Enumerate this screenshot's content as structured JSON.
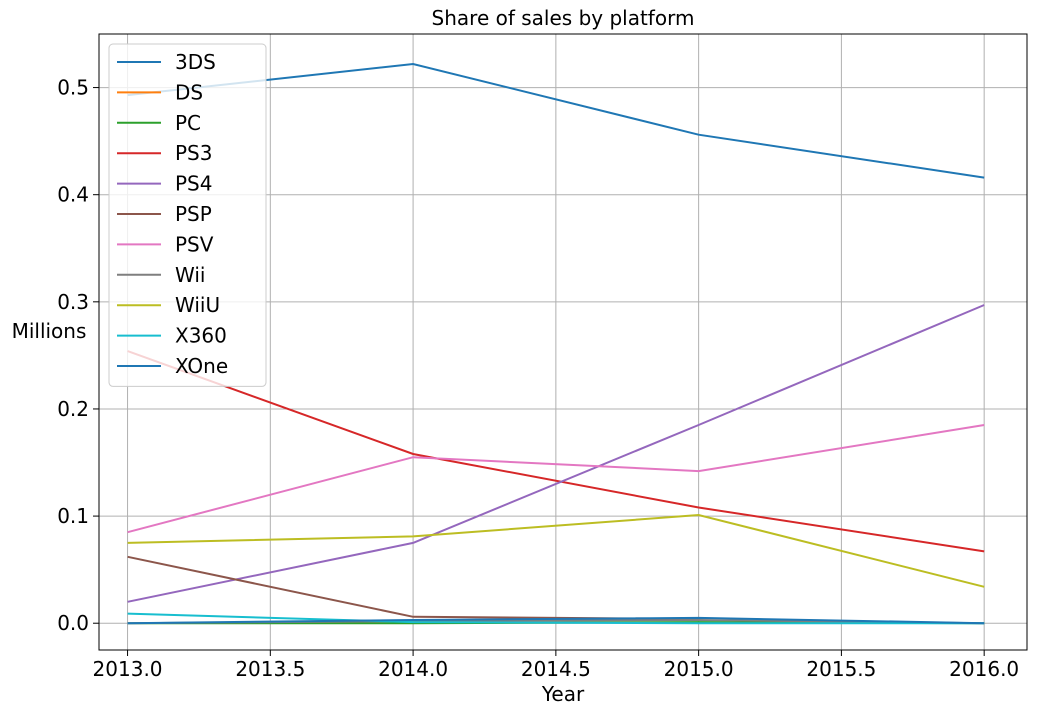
{
  "chart_data": {
    "type": "line",
    "title": "Share of sales by platform",
    "xlabel": "Year",
    "ylabel": "Millions",
    "x": [
      2013,
      2014,
      2015,
      2016
    ],
    "xlim": [
      2012.9,
      2016.15
    ],
    "ylim": [
      -0.025,
      0.55
    ],
    "xticks": [
      "2013.0",
      "2013.5",
      "2014.0",
      "2014.5",
      "2015.0",
      "2015.5",
      "2016.0"
    ],
    "yticks": [
      "0.0",
      "0.1",
      "0.2",
      "0.3",
      "0.4",
      "0.5"
    ],
    "grid": true,
    "legend_position": "top-left",
    "series": [
      {
        "name": "3DS",
        "color": "#1f77b4",
        "values": [
          0.493,
          0.522,
          0.456,
          0.416
        ]
      },
      {
        "name": "DS",
        "color": "#ff7f0e",
        "values": [
          0.001,
          null,
          null,
          null
        ]
      },
      {
        "name": "PC",
        "color": "#2ca02c",
        "values": [
          0.0,
          0.0,
          0.001,
          0.0
        ]
      },
      {
        "name": "PS3",
        "color": "#d62728",
        "values": [
          0.254,
          0.158,
          0.108,
          0.067
        ]
      },
      {
        "name": "PS4",
        "color": "#9467bd",
        "values": [
          0.02,
          0.075,
          0.185,
          0.297
        ]
      },
      {
        "name": "PSP",
        "color": "#8c564b",
        "values": [
          0.062,
          0.006,
          0.004,
          null
        ]
      },
      {
        "name": "PSV",
        "color": "#e377c2",
        "values": [
          0.085,
          0.155,
          0.142,
          0.185
        ]
      },
      {
        "name": "Wii",
        "color": "#7f7f7f",
        "values": [
          0.0,
          0.002,
          0.003,
          0.0
        ]
      },
      {
        "name": "WiiU",
        "color": "#bcbd22",
        "values": [
          0.075,
          0.081,
          0.101,
          0.034
        ]
      },
      {
        "name": "X360",
        "color": "#17becf",
        "values": [
          0.009,
          0.001,
          0.0,
          0.0
        ]
      },
      {
        "name": "XOne",
        "color": "#1f77b4",
        "values": [
          0.0,
          0.003,
          0.005,
          0.0
        ]
      }
    ]
  }
}
